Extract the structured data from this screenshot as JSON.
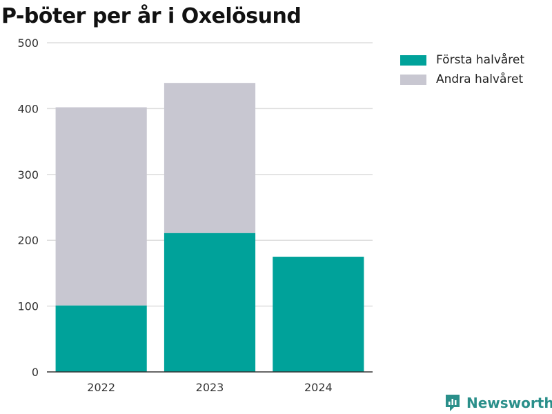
{
  "title": "P-böter per år i Oxelösund",
  "brand": "Newsworthy",
  "colors": {
    "first_half": "#00a29a",
    "second_half": "#c8c7d1",
    "brand": "#2a8f8a"
  },
  "chart_data": {
    "type": "bar",
    "stacked": true,
    "title": "P-böter per år i Oxelösund",
    "categories": [
      "2022",
      "2023",
      "2024"
    ],
    "series": [
      {
        "name": "Första halvåret",
        "values": [
          101,
          211,
          175
        ]
      },
      {
        "name": "Andra halvåret",
        "values": [
          301,
          228,
          0
        ]
      }
    ],
    "ylim": [
      0,
      500
    ],
    "yticks": [
      0,
      100,
      200,
      300,
      400,
      500
    ],
    "grid": true,
    "legend_position": "top-right"
  }
}
